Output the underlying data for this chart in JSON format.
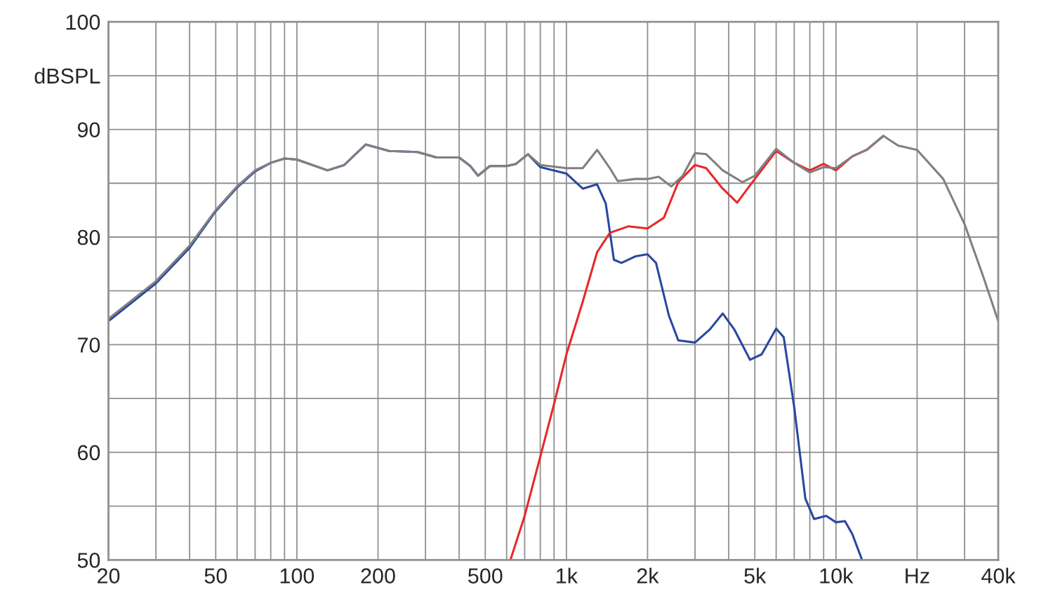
{
  "chart_data": {
    "type": "line",
    "log": "x",
    "grid": true,
    "xlim": [
      20,
      40000
    ],
    "ylim": [
      50,
      100
    ],
    "xticks": [
      20,
      {
        "value": 30,
        "label": null
      },
      {
        "value": 40,
        "label": null
      },
      50,
      {
        "value": 60,
        "label": null
      },
      {
        "value": 70,
        "label": null
      },
      {
        "value": 80,
        "label": null
      },
      {
        "value": 90,
        "label": null
      },
      100,
      200,
      {
        "value": 300,
        "label": null
      },
      {
        "value": 400,
        "label": null
      },
      500,
      {
        "value": 600,
        "label": null
      },
      {
        "value": 700,
        "label": null
      },
      {
        "value": 800,
        "label": null
      },
      {
        "value": 900,
        "label": null
      },
      {
        "value": 1000,
        "label": "1k"
      },
      {
        "value": 2000,
        "label": "2k"
      },
      {
        "value": 3000,
        "label": null
      },
      {
        "value": 4000,
        "label": null
      },
      {
        "value": 5000,
        "label": "5k"
      },
      {
        "value": 6000,
        "label": null
      },
      {
        "value": 7000,
        "label": null
      },
      {
        "value": 8000,
        "label": null
      },
      {
        "value": 9000,
        "label": null
      },
      {
        "value": 10000,
        "label": "10k"
      },
      {
        "value": 20000,
        "label": "Hz"
      },
      {
        "value": 30000,
        "label": null
      },
      {
        "value": 40000,
        "label": "40k"
      }
    ],
    "yticks": [
      50,
      {
        "value": 55,
        "label": null
      },
      60,
      {
        "value": 65,
        "label": null
      },
      70,
      {
        "value": 75,
        "label": null
      },
      80,
      {
        "value": 85,
        "label": null
      },
      90,
      {
        "value": 95,
        "label": "dBSPL"
      },
      100
    ],
    "series": [
      {
        "color": "#2848a0",
        "x": [
          20,
          30,
          40,
          50,
          60,
          70,
          80,
          90,
          100,
          130,
          150,
          180,
          220,
          280,
          330,
          400,
          440,
          470,
          520,
          600,
          650,
          720,
          800,
          1000,
          1150,
          1300,
          1400,
          1500,
          1600,
          1800,
          2000,
          2150,
          2400,
          2600,
          3000,
          3400,
          3800,
          4200,
          4800,
          5300,
          6000,
          6400,
          7000,
          7700,
          8300,
          9200,
          10000,
          10800,
          11500,
          12500
        ],
        "values": [
          72.2,
          75.7,
          79.0,
          82.4,
          84.6,
          86.1,
          86.9,
          87.3,
          87.2,
          86.2,
          86.7,
          88.6,
          88.0,
          87.9,
          87.4,
          87.4,
          86.6,
          85.7,
          86.6,
          86.6,
          86.8,
          87.7,
          86.5,
          85.9,
          84.5,
          84.9,
          83.1,
          77.9,
          77.6,
          78.2,
          78.4,
          77.6,
          72.7,
          70.4,
          70.2,
          71.4,
          72.9,
          71.4,
          68.6,
          69.1,
          71.5,
          70.7,
          64.2,
          55.7,
          53.8,
          54.1,
          53.5,
          53.6,
          52.4,
          50.0
        ]
      },
      {
        "color": "#e8282a",
        "x": [
          620,
          700,
          800,
          900,
          1000,
          1150,
          1300,
          1450,
          1700,
          2000,
          2300,
          2600,
          3000,
          3300,
          3800,
          4300,
          5000,
          6000,
          7000,
          8000,
          9000,
          10000,
          11500,
          13000,
          15000
        ],
        "values": [
          50,
          54.1,
          59.6,
          64.5,
          69.1,
          74.0,
          78.6,
          80.4,
          81.0,
          80.8,
          81.8,
          85.1,
          86.7,
          86.4,
          84.5,
          83.2,
          85.4,
          88.0,
          86.9,
          86.2,
          86.8,
          86.2,
          87.5,
          88.1,
          89.4
        ]
      },
      {
        "color": "#808080",
        "x": [
          20,
          30,
          40,
          50,
          60,
          70,
          80,
          90,
          100,
          130,
          150,
          180,
          220,
          280,
          330,
          400,
          440,
          470,
          520,
          600,
          650,
          720,
          800,
          1000,
          1150,
          1300,
          1450,
          1550,
          1800,
          2000,
          2200,
          2450,
          2700,
          3000,
          3300,
          3800,
          4500,
          5000,
          6000,
          7000,
          8000,
          9000,
          10000,
          11500,
          13000,
          15000,
          17000,
          20000,
          25000,
          30000,
          35000,
          40000
        ],
        "values": [
          72.4,
          75.9,
          79.2,
          82.5,
          84.7,
          86.2,
          86.9,
          87.3,
          87.2,
          86.2,
          86.7,
          88.6,
          88.0,
          87.9,
          87.4,
          87.4,
          86.6,
          85.7,
          86.6,
          86.6,
          86.8,
          87.7,
          86.7,
          86.4,
          86.4,
          88.1,
          86.4,
          85.2,
          85.4,
          85.4,
          85.6,
          84.7,
          85.7,
          87.8,
          87.7,
          86.2,
          85.1,
          85.7,
          88.2,
          86.9,
          86.0,
          86.5,
          86.4,
          87.5,
          88.1,
          89.4,
          88.5,
          88.1,
          85.4,
          81.2,
          76.5,
          72.2
        ]
      }
    ]
  }
}
